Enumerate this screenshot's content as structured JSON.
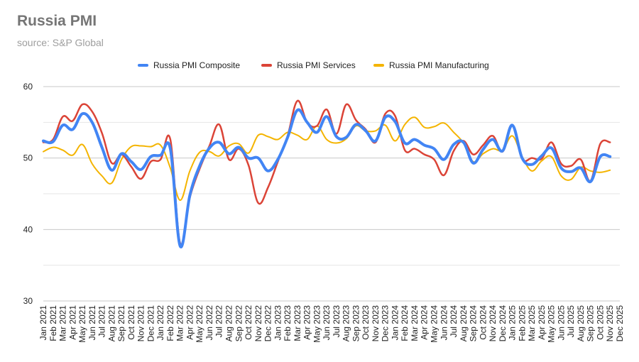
{
  "chart_data": {
    "type": "line",
    "title": "Russia PMI",
    "subtitle": "source: S&P Global",
    "xlabel": "",
    "ylabel": "",
    "ylim": [
      30,
      60
    ],
    "yticks": [
      30,
      40,
      50,
      60
    ],
    "grid": true,
    "legend_position": "top",
    "categories": [
      "Jan 2021",
      "Feb 2021",
      "Mar 2021",
      "Apr 2021",
      "May 2021",
      "Jun 2021",
      "Jul 2021",
      "Aug 2021",
      "Sep 2021",
      "Oct 2021",
      "Nov 2021",
      "Dec 2021",
      "Jan 2022",
      "Feb 2022",
      "Mar 2022",
      "Apr 2022",
      "May 2022",
      "Jun 2022",
      "Jul 2022",
      "Aug 2022",
      "Sep 2022",
      "Oct 2022",
      "Nov 2022",
      "Dec 2022",
      "Jan 2023",
      "Feb 2023",
      "Mar 2023",
      "Apr 2023",
      "May 2023",
      "Jun 2023",
      "Jul 2023",
      "Aug 2023",
      "Sep 2023",
      "Oct 2023",
      "Nov 2023",
      "Dec 2023",
      "Jan 2024",
      "Feb 2024",
      "Mar 2024",
      "Apr 2024",
      "May 2024",
      "Jun 2024",
      "Jul 2024",
      "Aug 2024",
      "Sep 2024",
      "Oct 2024",
      "Nov 2024",
      "Dec 2024",
      "Jan 2025",
      "Feb 2025",
      "Mar 2025",
      "Apr 2025",
      "May 2025",
      "Jun 2025",
      "Jul 2025",
      "Aug 2025",
      "Sep 2025",
      "Oct 2025",
      "Nov 2025",
      "Dec 2025"
    ],
    "series": [
      {
        "name": "Russia PMI Composite",
        "color": "#4285F4",
        "width": 4,
        "values": [
          52.4,
          52.3,
          54.6,
          54.0,
          56.2,
          55.0,
          51.5,
          48.3,
          50.6,
          49.5,
          48.4,
          50.2,
          50.4,
          51.3,
          37.7,
          44.8,
          48.9,
          51.4,
          52.2,
          50.6,
          51.5,
          50.0,
          50.0,
          48.2,
          49.8,
          52.9,
          56.7,
          55.0,
          53.6,
          55.8,
          53.0,
          52.9,
          54.7,
          53.8,
          52.4,
          55.7,
          55.1,
          52.1,
          52.6,
          51.8,
          51.3,
          49.8,
          51.9,
          52.2,
          49.3,
          51.2,
          52.6,
          51.0,
          54.6,
          50.0,
          49.1,
          50.3,
          51.4,
          48.6,
          48.1,
          48.6,
          46.7,
          50.2,
          50.2,
          null
        ]
      },
      {
        "name": "Russia PMI Services",
        "color": "#DB4437",
        "width": 2.5,
        "values": [
          52.2,
          52.6,
          55.8,
          55.2,
          57.5,
          56.5,
          53.5,
          49.3,
          50.5,
          48.8,
          47.1,
          49.5,
          49.8,
          52.6,
          38.1,
          44.5,
          48.5,
          51.7,
          54.7,
          49.8,
          51.3,
          49.0,
          43.7,
          45.9,
          49.5,
          53.1,
          58.0,
          55.0,
          54.5,
          56.8,
          53.4,
          57.5,
          55.3,
          54.0,
          52.2,
          56.2,
          55.9,
          51.1,
          51.3,
          50.5,
          49.8,
          47.6,
          51.0,
          52.4,
          50.5,
          51.8,
          53.1,
          50.9,
          54.5,
          49.9,
          50.0,
          49.9,
          52.2,
          49.2,
          48.9,
          49.8,
          46.8,
          52.0,
          52.2,
          null
        ]
      },
      {
        "name": "Russia PMI Manufacturing",
        "color": "#F4B400",
        "width": 2,
        "values": [
          50.9,
          51.5,
          51.1,
          50.4,
          51.9,
          49.2,
          47.5,
          46.5,
          49.8,
          51.6,
          51.7,
          51.6,
          51.8,
          48.6,
          44.1,
          48.2,
          50.8,
          50.9,
          50.3,
          51.7,
          52.0,
          50.7,
          53.2,
          53.0,
          52.6,
          53.6,
          53.2,
          52.6,
          54.5,
          52.6,
          52.1,
          52.7,
          54.5,
          53.8,
          53.8,
          54.6,
          52.4,
          54.7,
          55.7,
          54.3,
          54.4,
          54.9,
          53.6,
          52.1,
          49.5,
          50.6,
          51.3,
          51.1,
          53.1,
          50.2,
          48.2,
          49.6,
          50.2,
          47.5,
          47.0,
          48.7,
          48.2,
          48.0,
          48.3,
          null
        ]
      }
    ]
  }
}
